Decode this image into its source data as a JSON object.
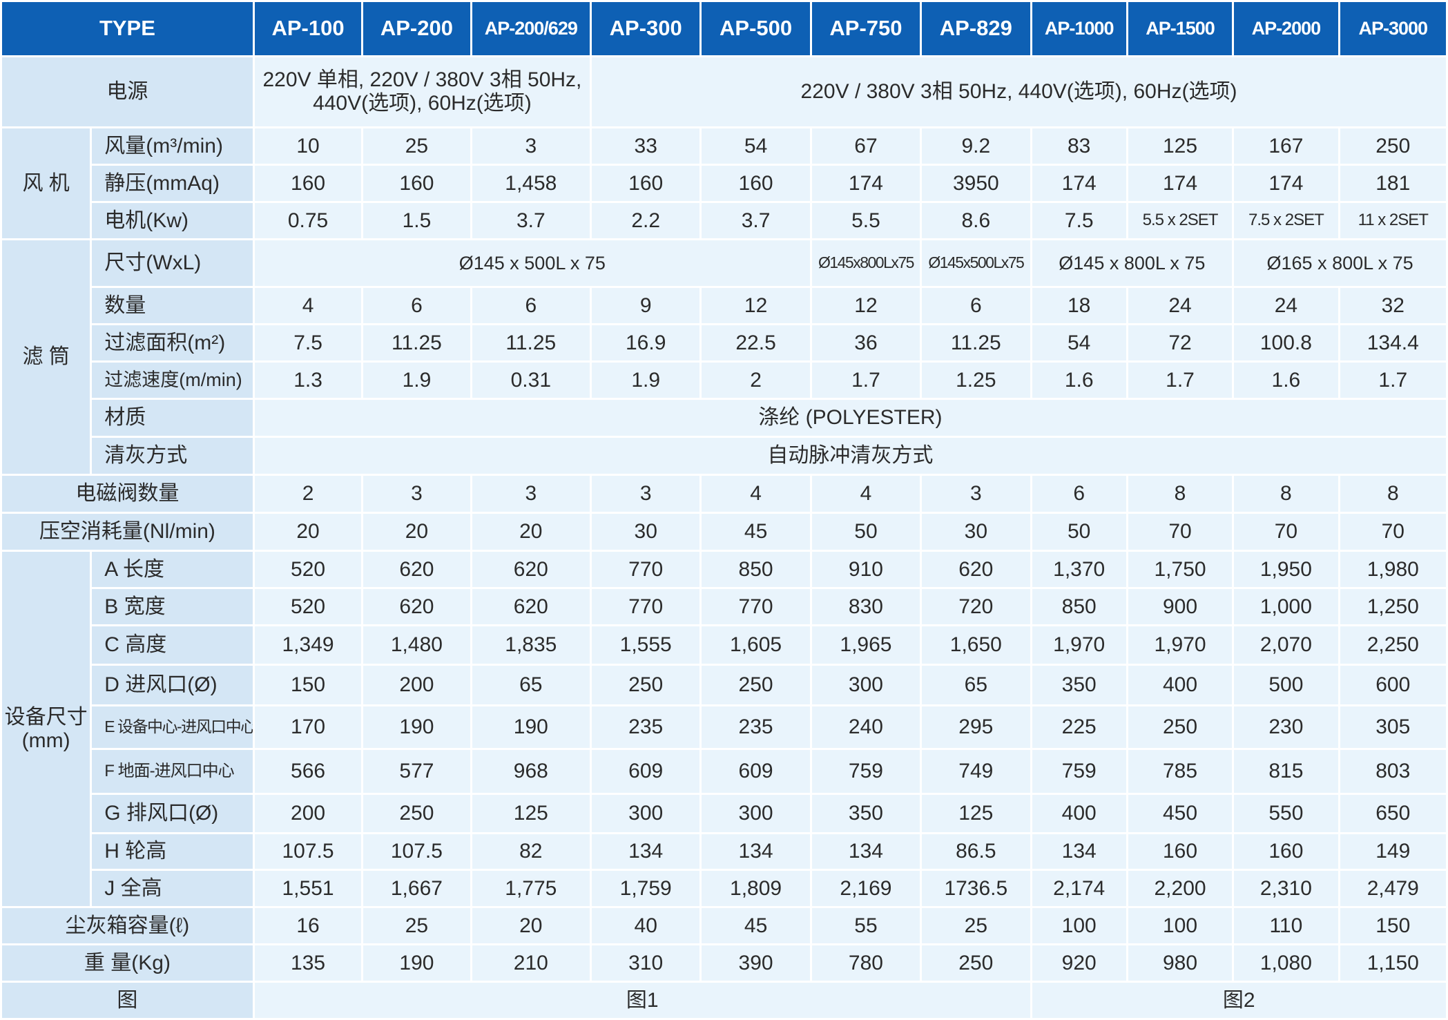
{
  "header": {
    "type_label": "TYPE",
    "models": [
      "AP-100",
      "AP-200",
      "AP-200/629",
      "AP-300",
      "AP-500",
      "AP-750",
      "AP-829",
      "AP-1000",
      "AP-1500",
      "AP-2000",
      "AP-3000"
    ]
  },
  "power": {
    "label": "电源",
    "value_a": "220V 单相, 220V / 380V 3相 50Hz, 440V(选项), 60Hz(选项)",
    "value_b": "220V / 380V 3相 50Hz, 440V(选项), 60Hz(选项)"
  },
  "fan": {
    "group_label": "风 机",
    "airflow": {
      "label": "风量(m³/min)",
      "values": [
        "10",
        "25",
        "3",
        "33",
        "54",
        "67",
        "9.2",
        "83",
        "125",
        "167",
        "250"
      ]
    },
    "static_pressure": {
      "label": "静压(mmAq)",
      "values": [
        "160",
        "160",
        "1,458",
        "160",
        "160",
        "174",
        "3950",
        "174",
        "174",
        "174",
        "181"
      ]
    },
    "motor": {
      "label": "电机(Kw)",
      "values": [
        "0.75",
        "1.5",
        "3.7",
        "2.2",
        "3.7",
        "5.5",
        "8.6",
        "7.5",
        "5.5 x 2SET",
        "7.5 x 2SET",
        "11 x 2SET"
      ]
    }
  },
  "filter": {
    "group_label": "滤 筒",
    "size": {
      "label": "尺寸(WxL)",
      "value_1": "Ø145 x 500L x 75",
      "value_2": "Ø145x800Lx75",
      "value_3": "Ø145x500Lx75",
      "value_4": "Ø145 x 800L x 75",
      "value_5": "Ø165 x 800L x 75"
    },
    "quantity": {
      "label": "数量",
      "values": [
        "4",
        "6",
        "6",
        "9",
        "12",
        "12",
        "6",
        "18",
        "24",
        "24",
        "32"
      ]
    },
    "area": {
      "label": "过滤面积(m²)",
      "values": [
        "7.5",
        "11.25",
        "11.25",
        "16.9",
        "22.5",
        "36",
        "11.25",
        "54",
        "72",
        "100.8",
        "134.4"
      ]
    },
    "speed": {
      "label": "过滤速度(m/min)",
      "values": [
        "1.3",
        "1.9",
        "0.31",
        "1.9",
        "2",
        "1.7",
        "1.25",
        "1.6",
        "1.7",
        "1.6",
        "1.7"
      ]
    },
    "material": {
      "label": "材质",
      "value": "涤纶 (POLYESTER)"
    },
    "cleaning": {
      "label": "清灰方式",
      "value": "自动脉冲清灰方式"
    }
  },
  "valves": {
    "label": "电磁阀数量",
    "values": [
      "2",
      "3",
      "3",
      "3",
      "4",
      "4",
      "3",
      "6",
      "8",
      "8",
      "8"
    ]
  },
  "air_consumption": {
    "label": "压空消耗量(Nl/min)",
    "values": [
      "20",
      "20",
      "20",
      "30",
      "45",
      "50",
      "30",
      "50",
      "70",
      "70",
      "70"
    ]
  },
  "dimensions": {
    "group_label_1": "设备尺寸",
    "group_label_2": "(mm)",
    "rows": [
      {
        "label": "A 长度",
        "values": [
          "520",
          "620",
          "620",
          "770",
          "850",
          "910",
          "620",
          "1,370",
          "1,750",
          "1,950",
          "1,980"
        ]
      },
      {
        "label": "B 宽度",
        "values": [
          "520",
          "620",
          "620",
          "770",
          "770",
          "830",
          "720",
          "850",
          "900",
          "1,000",
          "1,250"
        ]
      },
      {
        "label": "C 高度",
        "values": [
          "1,349",
          "1,480",
          "1,835",
          "1,555",
          "1,605",
          "1,965",
          "1,650",
          "1,970",
          "1,970",
          "2,070",
          "2,250"
        ]
      },
      {
        "label": "D 进风口(Ø)",
        "values": [
          "150",
          "200",
          "65",
          "250",
          "250",
          "300",
          "65",
          "350",
          "400",
          "500",
          "600"
        ]
      },
      {
        "label": "E 设备中心-进风口中心",
        "values": [
          "170",
          "190",
          "190",
          "235",
          "235",
          "240",
          "295",
          "225",
          "250",
          "230",
          "305"
        ]
      },
      {
        "label": "F 地面-进风口中心",
        "values": [
          "566",
          "577",
          "968",
          "609",
          "609",
          "759",
          "749",
          "759",
          "785",
          "815",
          "803"
        ]
      },
      {
        "label": "G 排风口(Ø)",
        "values": [
          "200",
          "250",
          "125",
          "300",
          "300",
          "350",
          "125",
          "400",
          "450",
          "550",
          "650"
        ]
      },
      {
        "label": "H 轮高",
        "values": [
          "107.5",
          "107.5",
          "82",
          "134",
          "134",
          "134",
          "86.5",
          "134",
          "160",
          "160",
          "149"
        ]
      },
      {
        "label": "J 全高",
        "values": [
          "1,551",
          "1,667",
          "1,775",
          "1,759",
          "1,809",
          "2,169",
          "1736.5",
          "2,174",
          "2,200",
          "2,310",
          "2,479"
        ]
      }
    ]
  },
  "dust_box": {
    "label": "尘灰箱容量(ℓ)",
    "values": [
      "16",
      "25",
      "20",
      "40",
      "45",
      "55",
      "25",
      "100",
      "100",
      "110",
      "150"
    ]
  },
  "weight": {
    "label": "重 量(Kg)",
    "values": [
      "135",
      "190",
      "210",
      "310",
      "390",
      "780",
      "250",
      "920",
      "980",
      "1,080",
      "1,150"
    ]
  },
  "figure": {
    "label": "图",
    "fig1": "图1",
    "fig2": "图2"
  },
  "colors": {
    "header_bg": "#0e60b4",
    "label_bg": "#d4e6f5",
    "value_bg": "#e9f4fc",
    "text": "#2b2b2b"
  }
}
